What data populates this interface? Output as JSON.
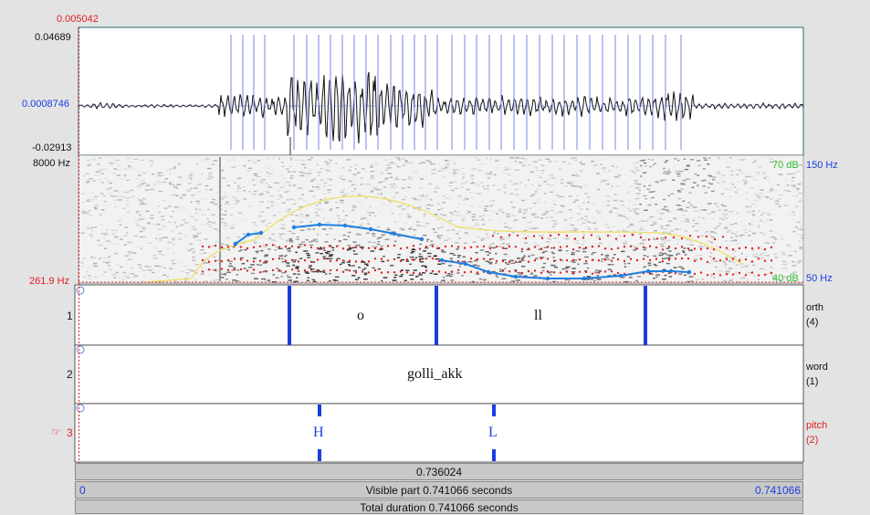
{
  "waveform": {
    "cursor_time": "0.005042",
    "amp_max": "0.04689",
    "amp_cursor": "0.0008746",
    "amp_min": "-0.02913"
  },
  "spectrogram": {
    "freq_max": "8000 Hz",
    "freq_min": "261.9 Hz",
    "intensity_max": "70 dB",
    "intensity_min": "40 dB",
    "pitch_max": "150 Hz",
    "pitch_min": "50 Hz"
  },
  "tiers": [
    {
      "number": "1",
      "name": "orth",
      "count": "(4)",
      "intervals": [
        "o",
        "ll"
      ]
    },
    {
      "number": "2",
      "name": "word",
      "count": "(1)",
      "intervals": [
        "golli_akk"
      ]
    },
    {
      "number": "3",
      "name": "pitch",
      "count": "(2)",
      "points": [
        "H",
        "L"
      ],
      "pointer": "☞"
    }
  ],
  "bars": {
    "selection": "0.736024",
    "visible_start": "0",
    "visible_part": "Visible part 0.741066 seconds",
    "visible_end": "0.741066",
    "total_duration": "Total duration 0.741066 seconds"
  },
  "colors": {
    "waveform": "#111111",
    "pulse_lines": "#7a86e8",
    "pitch_track": "#1f7fe0",
    "formants": "#e02020",
    "intensity": "#f0e070",
    "boundary": "#1a3de0",
    "cursor": "#e02020"
  }
}
